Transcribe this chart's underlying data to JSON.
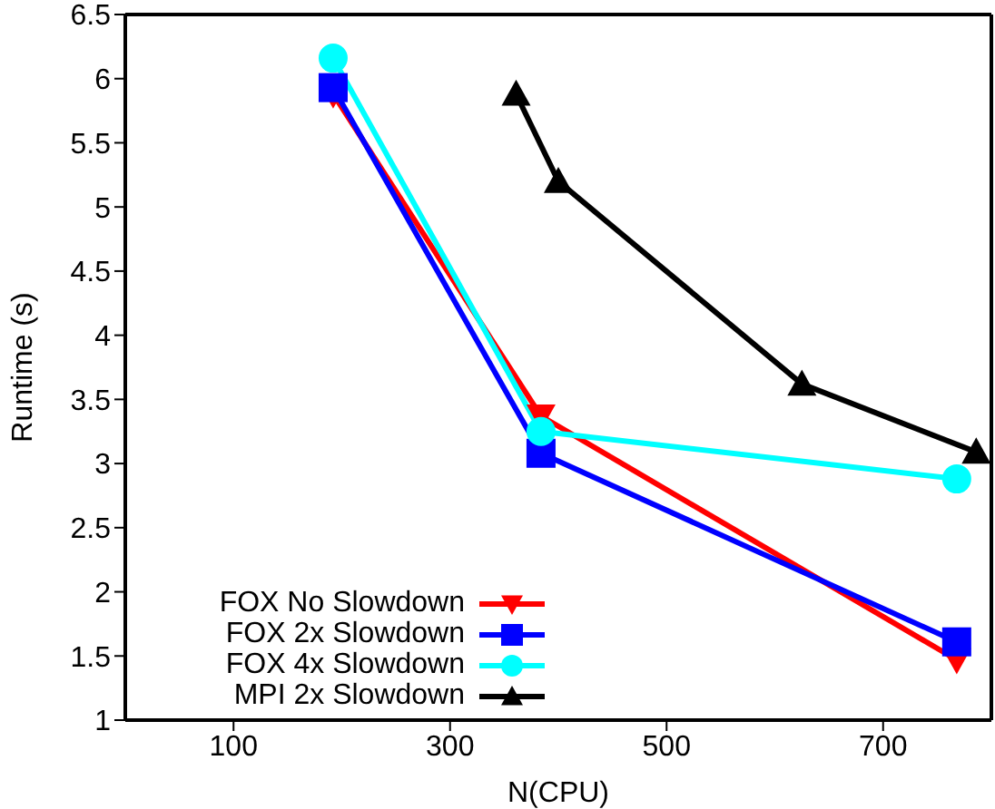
{
  "chart_data": {
    "type": "line",
    "xlabel": "N(CPU)",
    "ylabel": "Runtime (s)",
    "xlim": [
      0,
      800
    ],
    "xticks": [
      100,
      300,
      500,
      700
    ],
    "ylim": [
      1,
      6.5
    ],
    "yticks": [
      1,
      1.5,
      2,
      2.5,
      3,
      3.5,
      4,
      4.5,
      5,
      5.5,
      6,
      6.5
    ],
    "legend": "bottom left",
    "line_style": "solid",
    "series": [
      {
        "name": "FOX No Slowdown",
        "color": "#ff0000",
        "marker": "triangle-down",
        "x": [
          192,
          384,
          768
        ],
        "values": [
          5.88,
          3.37,
          1.47
        ]
      },
      {
        "name": "FOX 2x Slowdown",
        "color": "#0000ff",
        "marker": "square",
        "x": [
          192,
          384,
          768
        ],
        "values": [
          5.93,
          3.08,
          1.61
        ]
      },
      {
        "name": "FOX 4x Slowdown",
        "color": "#00ffff",
        "marker": "circle",
        "x": [
          192,
          384,
          768
        ],
        "values": [
          6.16,
          3.25,
          2.88
        ]
      },
      {
        "name": "MPI 2x Slowdown",
        "color": "#000000",
        "marker": "triangle",
        "x": [
          361,
          400,
          625,
          786
        ],
        "values": [
          5.88,
          5.2,
          3.62,
          3.09
        ]
      }
    ]
  }
}
